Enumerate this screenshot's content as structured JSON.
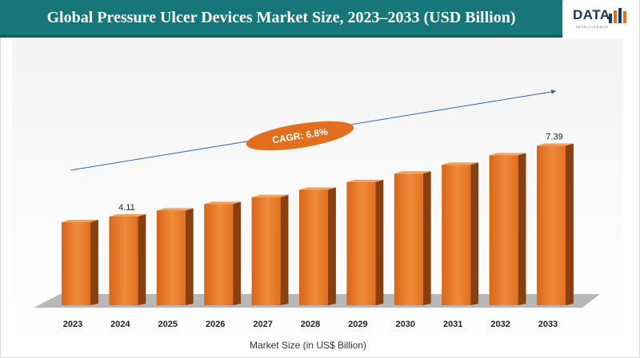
{
  "header": {
    "title": "Global Pressure Ulcer Devices Market Size, 2023–2033 (USD Billion)",
    "logo_text": "DATA",
    "logo_sub": "INTELLIGENCE"
  },
  "chart_data": {
    "type": "bar",
    "title": "Global Pressure Ulcer Devices Market Size, 2023–2033 (USD Billion)",
    "xlabel": "Market Size (in US$ Billion)",
    "ylabel": "",
    "categories": [
      "2023",
      "2024",
      "2025",
      "2026",
      "2027",
      "2028",
      "2029",
      "2030",
      "2031",
      "2032",
      "2033"
    ],
    "values": [
      3.85,
      4.11,
      4.39,
      4.69,
      5.01,
      5.35,
      5.71,
      6.1,
      6.51,
      6.95,
      7.39
    ],
    "data_labels": [
      {
        "index": 1,
        "text": "4.11"
      },
      {
        "index": 10,
        "text": "7.39"
      }
    ],
    "annotation": "CAGR: 6.8%",
    "ylim": [
      0,
      8.85
    ],
    "grid": false,
    "legend": "none",
    "colors": {
      "bar_front": "#e0701f",
      "bar_front_light": "#f08a3a",
      "bar_side": "#8a3f0e",
      "bar_top": "#f2a05a",
      "floor": "#b8b8b8",
      "trend_line": "#2e63b0",
      "badge": "#e26f1e"
    }
  }
}
